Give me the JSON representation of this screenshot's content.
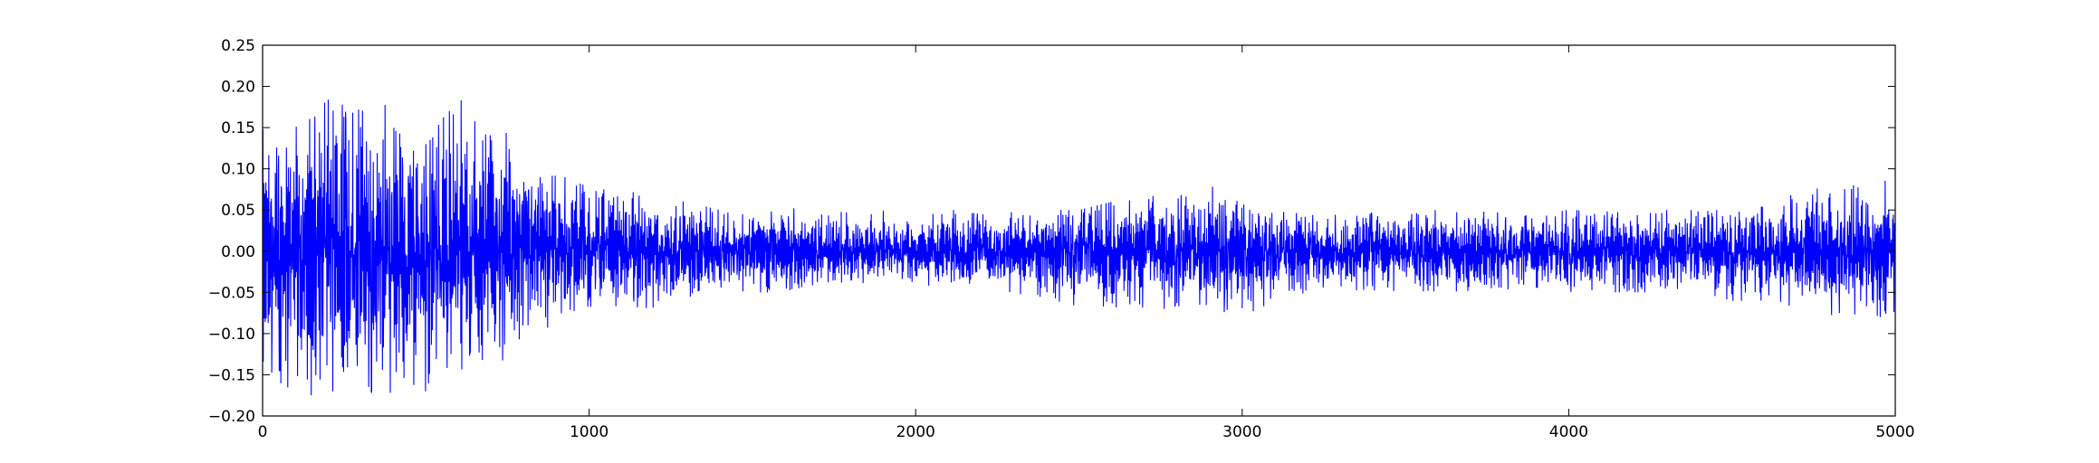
{
  "chart_data": {
    "type": "line",
    "title": "",
    "xlabel": "",
    "ylabel": "",
    "xlim": [
      0,
      5000
    ],
    "ylim": [
      -0.2,
      0.25
    ],
    "grid": false,
    "legend": "none",
    "x_ticks": [
      0,
      1000,
      2000,
      3000,
      4000,
      5000
    ],
    "x_tick_labels": [
      "0",
      "1000",
      "2000",
      "3000",
      "4000",
      "5000"
    ],
    "y_ticks": [
      -0.2,
      -0.15,
      -0.1,
      -0.05,
      0.0,
      0.05,
      0.1,
      0.15,
      0.2,
      0.25
    ],
    "y_tick_labels": [
      "−0.20",
      "−0.15",
      "−0.10",
      "−0.05",
      "0.00",
      "0.05",
      "0.10",
      "0.15",
      "0.20",
      "0.25"
    ],
    "series": [
      {
        "color": "#0000ff",
        "num_samples": 5000,
        "envelope": {
          "x": [
            0,
            100,
            200,
            300,
            400,
            500,
            600,
            700,
            800,
            900,
            1000,
            1100,
            1200,
            1300,
            1400,
            1500,
            1600,
            1700,
            1800,
            1900,
            2000,
            2100,
            2200,
            2300,
            2400,
            2500,
            2600,
            2700,
            2800,
            2900,
            3000,
            3100,
            3200,
            3300,
            3400,
            3500,
            3600,
            3700,
            3800,
            3900,
            4000,
            4100,
            4200,
            4300,
            4400,
            4500,
            4600,
            4700,
            4800,
            4900,
            5000
          ],
          "max": [
            0.16,
            0.15,
            0.2,
            0.17,
            0.18,
            0.13,
            0.19,
            0.15,
            0.14,
            0.09,
            0.09,
            0.08,
            0.07,
            0.06,
            0.05,
            0.05,
            0.06,
            0.05,
            0.05,
            0.05,
            0.04,
            0.05,
            0.05,
            0.05,
            0.05,
            0.05,
            0.06,
            0.07,
            0.07,
            0.08,
            0.06,
            0.05,
            0.05,
            0.05,
            0.05,
            0.05,
            0.05,
            0.05,
            0.05,
            0.05,
            0.05,
            0.05,
            0.05,
            0.05,
            0.05,
            0.05,
            0.06,
            0.07,
            0.08,
            0.08,
            0.09
          ],
          "min": [
            -0.15,
            -0.17,
            -0.18,
            -0.2,
            -0.17,
            -0.19,
            -0.19,
            -0.15,
            -0.1,
            -0.09,
            -0.07,
            -0.07,
            -0.07,
            -0.06,
            -0.05,
            -0.05,
            -0.05,
            -0.04,
            -0.04,
            -0.04,
            -0.04,
            -0.05,
            -0.05,
            -0.05,
            -0.06,
            -0.07,
            -0.07,
            -0.07,
            -0.07,
            -0.07,
            -0.08,
            -0.06,
            -0.05,
            -0.05,
            -0.05,
            -0.05,
            -0.05,
            -0.05,
            -0.05,
            -0.05,
            -0.05,
            -0.05,
            -0.05,
            -0.05,
            -0.05,
            -0.06,
            -0.07,
            -0.07,
            -0.08,
            -0.08,
            -0.08
          ]
        }
      }
    ]
  }
}
